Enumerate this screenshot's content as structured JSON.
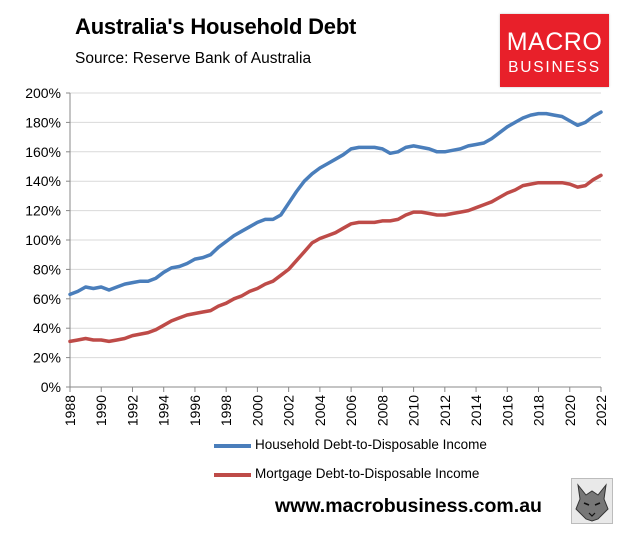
{
  "title": "Australia's Household Debt",
  "subtitle": "Source: Reserve Bank of Australia",
  "logo": {
    "line1": "MACRO",
    "line2": "BUSINESS",
    "bg": "#e8202a"
  },
  "footer": {
    "url": "www.macrobusiness.com.au"
  },
  "chart_data": {
    "type": "line",
    "title": "Australia's Household Debt",
    "xlabel": "",
    "ylabel": "",
    "xlim": [
      1988,
      2022
    ],
    "ylim": [
      0,
      200
    ],
    "x_ticks": [
      "1988",
      "1990",
      "1992",
      "1994",
      "1996",
      "1998",
      "2000",
      "2002",
      "2004",
      "2006",
      "2008",
      "2010",
      "2012",
      "2014",
      "2016",
      "2018",
      "2020",
      "2022"
    ],
    "y_ticks": [
      "0%",
      "20%",
      "40%",
      "60%",
      "80%",
      "100%",
      "120%",
      "140%",
      "160%",
      "180%",
      "200%"
    ],
    "grid": "horizontal",
    "legend_position": "bottom",
    "series": [
      {
        "name": "Household Debt-to-Disposable Income",
        "color": "#4a7ebb",
        "points": [
          [
            1988,
            63
          ],
          [
            1988.5,
            65
          ],
          [
            1989,
            68
          ],
          [
            1989.5,
            67
          ],
          [
            1990,
            68
          ],
          [
            1990.5,
            66
          ],
          [
            1991,
            68
          ],
          [
            1991.5,
            70
          ],
          [
            1992,
            71
          ],
          [
            1992.5,
            72
          ],
          [
            1993,
            72
          ],
          [
            1993.5,
            74
          ],
          [
            1994,
            78
          ],
          [
            1994.5,
            81
          ],
          [
            1995,
            82
          ],
          [
            1995.5,
            84
          ],
          [
            1996,
            87
          ],
          [
            1996.5,
            88
          ],
          [
            1997,
            90
          ],
          [
            1997.5,
            95
          ],
          [
            1998,
            99
          ],
          [
            1998.5,
            103
          ],
          [
            1999,
            106
          ],
          [
            1999.5,
            109
          ],
          [
            2000,
            112
          ],
          [
            2000.5,
            114
          ],
          [
            2001,
            114
          ],
          [
            2001.5,
            117
          ],
          [
            2002,
            125
          ],
          [
            2002.5,
            133
          ],
          [
            2003,
            140
          ],
          [
            2003.5,
            145
          ],
          [
            2004,
            149
          ],
          [
            2004.5,
            152
          ],
          [
            2005,
            155
          ],
          [
            2005.5,
            158
          ],
          [
            2006,
            162
          ],
          [
            2006.5,
            163
          ],
          [
            2007,
            163
          ],
          [
            2007.5,
            163
          ],
          [
            2008,
            162
          ],
          [
            2008.5,
            159
          ],
          [
            2009,
            160
          ],
          [
            2009.5,
            163
          ],
          [
            2010,
            164
          ],
          [
            2010.5,
            163
          ],
          [
            2011,
            162
          ],
          [
            2011.5,
            160
          ],
          [
            2012,
            160
          ],
          [
            2012.5,
            161
          ],
          [
            2013,
            162
          ],
          [
            2013.5,
            164
          ],
          [
            2014,
            165
          ],
          [
            2014.5,
            166
          ],
          [
            2015,
            169
          ],
          [
            2015.5,
            173
          ],
          [
            2016,
            177
          ],
          [
            2016.5,
            180
          ],
          [
            2017,
            183
          ],
          [
            2017.5,
            185
          ],
          [
            2018,
            186
          ],
          [
            2018.5,
            186
          ],
          [
            2019,
            185
          ],
          [
            2019.5,
            184
          ],
          [
            2020,
            181
          ],
          [
            2020.5,
            178
          ],
          [
            2021,
            180
          ],
          [
            2021.5,
            184
          ],
          [
            2022,
            187
          ]
        ]
      },
      {
        "name": "Mortgage Debt-to-Disposable Income",
        "color": "#be4b48",
        "points": [
          [
            1988,
            31
          ],
          [
            1988.5,
            32
          ],
          [
            1989,
            33
          ],
          [
            1989.5,
            32
          ],
          [
            1990,
            32
          ],
          [
            1990.5,
            31
          ],
          [
            1991,
            32
          ],
          [
            1991.5,
            33
          ],
          [
            1992,
            35
          ],
          [
            1992.5,
            36
          ],
          [
            1993,
            37
          ],
          [
            1993.5,
            39
          ],
          [
            1994,
            42
          ],
          [
            1994.5,
            45
          ],
          [
            1995,
            47
          ],
          [
            1995.5,
            49
          ],
          [
            1996,
            50
          ],
          [
            1996.5,
            51
          ],
          [
            1997,
            52
          ],
          [
            1997.5,
            55
          ],
          [
            1998,
            57
          ],
          [
            1998.5,
            60
          ],
          [
            1999,
            62
          ],
          [
            1999.5,
            65
          ],
          [
            2000,
            67
          ],
          [
            2000.5,
            70
          ],
          [
            2001,
            72
          ],
          [
            2001.5,
            76
          ],
          [
            2002,
            80
          ],
          [
            2002.5,
            86
          ],
          [
            2003,
            92
          ],
          [
            2003.5,
            98
          ],
          [
            2004,
            101
          ],
          [
            2004.5,
            103
          ],
          [
            2005,
            105
          ],
          [
            2005.5,
            108
          ],
          [
            2006,
            111
          ],
          [
            2006.5,
            112
          ],
          [
            2007,
            112
          ],
          [
            2007.5,
            112
          ],
          [
            2008,
            113
          ],
          [
            2008.5,
            113
          ],
          [
            2009,
            114
          ],
          [
            2009.5,
            117
          ],
          [
            2010,
            119
          ],
          [
            2010.5,
            119
          ],
          [
            2011,
            118
          ],
          [
            2011.5,
            117
          ],
          [
            2012,
            117
          ],
          [
            2012.5,
            118
          ],
          [
            2013,
            119
          ],
          [
            2013.5,
            120
          ],
          [
            2014,
            122
          ],
          [
            2014.5,
            124
          ],
          [
            2015,
            126
          ],
          [
            2015.5,
            129
          ],
          [
            2016,
            132
          ],
          [
            2016.5,
            134
          ],
          [
            2017,
            137
          ],
          [
            2017.5,
            138
          ],
          [
            2018,
            139
          ],
          [
            2018.5,
            139
          ],
          [
            2019,
            139
          ],
          [
            2019.5,
            139
          ],
          [
            2020,
            138
          ],
          [
            2020.5,
            136
          ],
          [
            2021,
            137
          ],
          [
            2021.5,
            141
          ],
          [
            2022,
            144
          ]
        ]
      }
    ]
  }
}
